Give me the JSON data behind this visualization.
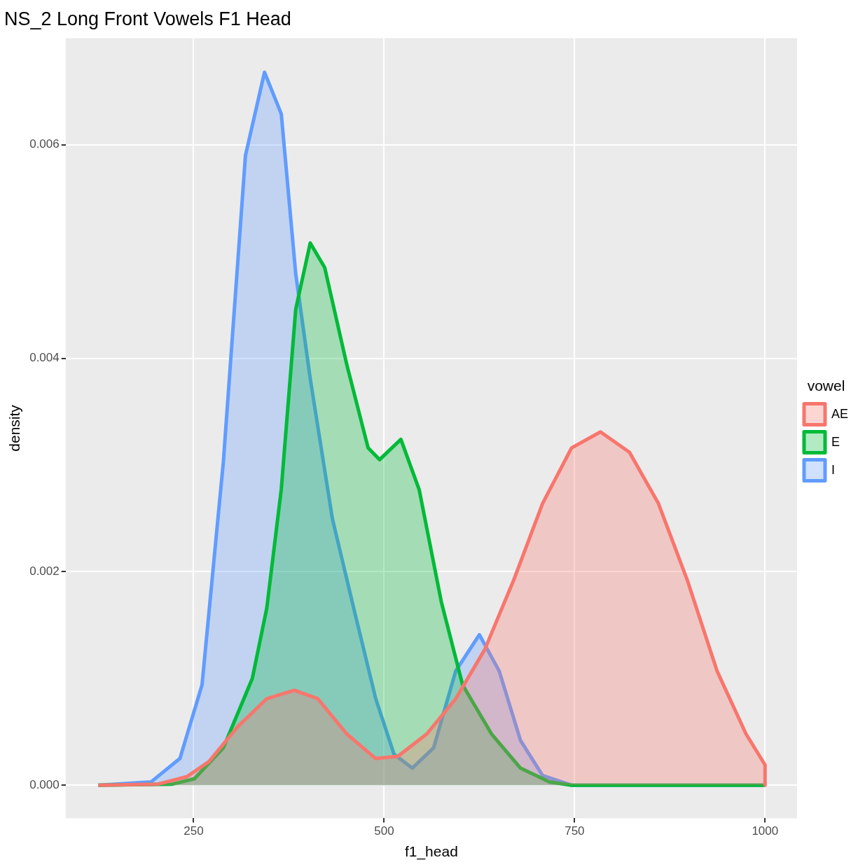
{
  "chart_data": {
    "type": "area",
    "title": "NS_2 Long Front Vowels F1 Head",
    "xlabel": "f1_head",
    "ylabel": "density",
    "legend_title": "vowel",
    "legend": "right",
    "grid": true,
    "xlim": [
      82,
      1042
    ],
    "ylim": [
      -0.00031,
      0.007
    ],
    "xticks": [
      250,
      500,
      750,
      1000
    ],
    "yticks": [
      {
        "value": 0,
        "label": "0.000"
      },
      {
        "value": 0.002,
        "label": "0.002"
      },
      {
        "value": 0.004,
        "label": "0.004"
      },
      {
        "value": 0.006,
        "label": "0.006"
      }
    ],
    "series": [
      {
        "name": "AE",
        "color": "#f8766d",
        "x": [
          125,
          203,
          241,
          270,
          308,
          346,
          382,
          413,
          451,
          489,
          518,
          556,
          594,
          632,
          670,
          708,
          746,
          784,
          822,
          860,
          898,
          937,
          975,
          1000,
          1000
        ],
        "values": [
          0,
          1e-05,
          8e-05,
          0.00022,
          0.00055,
          0.00081,
          0.00089,
          0.00081,
          0.00048,
          0.00025,
          0.00027,
          0.00048,
          0.00081,
          0.00127,
          0.00192,
          0.00264,
          0.00316,
          0.00331,
          0.00312,
          0.00264,
          0.00192,
          0.00107,
          0.00048,
          0.00019,
          0
        ]
      },
      {
        "name": "E",
        "color": "#00ba38",
        "x": [
          125,
          222,
          251,
          289,
          327,
          346,
          365,
          384,
          403,
          422,
          451,
          479,
          494,
          522,
          546,
          575,
          603,
          641,
          679,
          717,
          746,
          1000
        ],
        "values": [
          0,
          1e-05,
          6e-05,
          0.00035,
          0.001,
          0.00166,
          0.00277,
          0.00446,
          0.00508,
          0.00485,
          0.00394,
          0.00316,
          0.00305,
          0.00324,
          0.00277,
          0.00172,
          0.00094,
          0.00048,
          0.00016,
          3e-05,
          0,
          0
        ]
      },
      {
        "name": "I",
        "color": "#619cff",
        "x": [
          125,
          194,
          232,
          261,
          289,
          318,
          343,
          365,
          384,
          403,
          432,
          460,
          489,
          513,
          537,
          565,
          594,
          625,
          651,
          679,
          708,
          746,
          1000
        ],
        "values": [
          0,
          3e-05,
          0.00025,
          0.00094,
          0.00303,
          0.0059,
          0.00668,
          0.00629,
          0.00479,
          0.00381,
          0.0025,
          0.00166,
          0.00081,
          0.00029,
          0.00016,
          0.00035,
          0.00107,
          0.00141,
          0.00107,
          0.00042,
          9e-05,
          0,
          0
        ]
      }
    ]
  }
}
